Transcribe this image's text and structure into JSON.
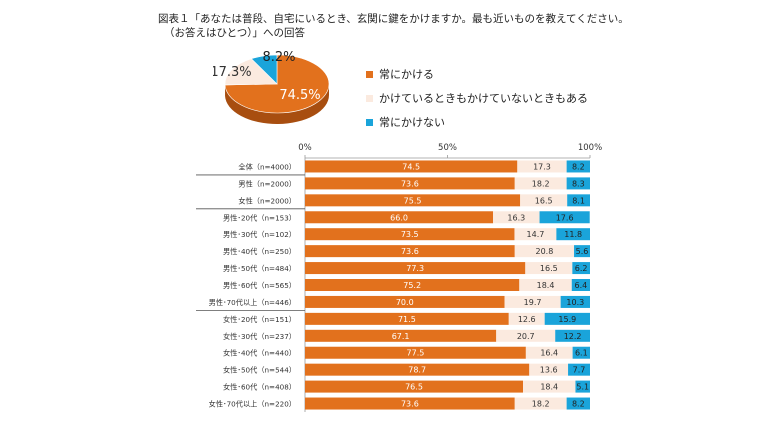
{
  "title": {
    "line1": "図表１「あなたは普段、自宅にいるとき、玄関に鍵をかけますか。最も近いものを教えてください。",
    "line2": "（お答えはひとつ）」への回答"
  },
  "colors": {
    "always": "#E2711D",
    "sometimes": "#FBEADF",
    "never": "#1AA4DA",
    "axis": "#9a9a9a",
    "pie_always_dark": "#A84E10",
    "pie_sometimes_dark": "#cdbfb4",
    "pie_never_dark": "#127a9f"
  },
  "chart_data": [
    {
      "type": "pie",
      "categories": [
        "常にかける",
        "かけているときもかけていないときもある",
        "常にかけない"
      ],
      "values": [
        74.5,
        17.3,
        8.2
      ],
      "labels": [
        "74.5%",
        "17.3%",
        "8.2%"
      ],
      "legend_position": "right"
    },
    {
      "type": "bar",
      "orientation": "horizontal",
      "stacked": true,
      "xlim": [
        0,
        100
      ],
      "x_ticks": [
        "0%",
        "50%",
        "100%"
      ],
      "categories": [
        "全体（n=4000）",
        "男性（n=2000）",
        "女性（n=2000）",
        "男性･20代（n=153）",
        "男性･30代（n=102）",
        "男性･40代（n=250）",
        "男性･50代（n=484）",
        "男性･60代（n=565）",
        "男性･70代以上（n=446）",
        "女性･20代（n=151）",
        "女性･30代（n=237）",
        "女性･40代（n=440）",
        "女性･50代（n=544）",
        "女性･60代（n=408）",
        "女性･70代以上（n=220）"
      ],
      "groups_end_after_index": [
        0,
        2,
        8
      ],
      "series": [
        {
          "name": "常にかける",
          "values": [
            74.5,
            73.6,
            75.5,
            66.0,
            73.5,
            73.6,
            77.3,
            75.2,
            70.0,
            71.5,
            67.1,
            77.5,
            78.7,
            76.5,
            73.6
          ],
          "labels": [
            "74.5",
            "73.6",
            "75.5",
            "66.0",
            "73.5",
            "73.6",
            "77.3",
            "75.2",
            "70.0",
            "71.5",
            "67.1",
            "77.5",
            "78.7",
            "76.5",
            "73.6"
          ]
        },
        {
          "name": "かけているときもかけていないときもある",
          "values": [
            17.3,
            18.2,
            16.5,
            16.3,
            14.7,
            20.8,
            16.5,
            18.4,
            19.7,
            12.6,
            20.7,
            16.4,
            13.6,
            18.4,
            18.2
          ],
          "labels": [
            "17.3",
            "18.2",
            "16.5",
            "16.3",
            "14.7",
            "20.8",
            "16.5",
            "18.4",
            "19.7",
            "12.6",
            "20.7",
            "16.4",
            "13.6",
            "18.4",
            "18.2"
          ]
        },
        {
          "name": "常にかけない",
          "values": [
            8.2,
            8.3,
            8.1,
            17.6,
            11.8,
            5.6,
            6.2,
            6.4,
            10.3,
            15.9,
            12.2,
            6.1,
            7.7,
            5.1,
            8.2
          ],
          "labels": [
            "8.2",
            "8.3",
            "8.1",
            "17.6",
            "11.8",
            "5.6",
            "6.2",
            "6.4",
            "10.3",
            "15.9",
            "12.2",
            "6.1",
            "7.7",
            "5.1",
            "8.2"
          ]
        }
      ]
    }
  ]
}
